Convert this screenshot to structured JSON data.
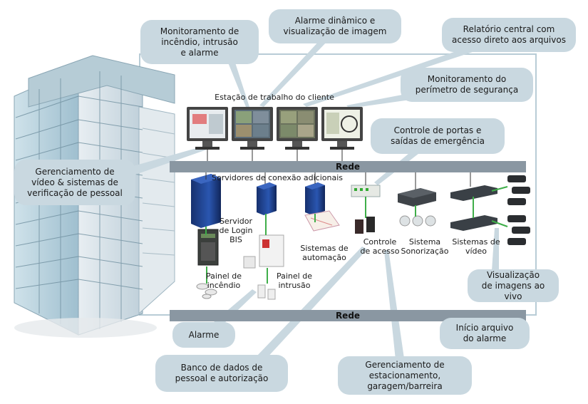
{
  "callouts": {
    "fire_intrusion": "Monitoramento de\nincêndio, intrusão\ne alarme",
    "dynamic_alarm": "Alarme dinâmico e\nvisualização de imagem",
    "central_report": "Relatório central com\nacesso direto aos arquivos",
    "perimeter": "Monitoramento do\nperímetro de segurança",
    "door_control": "Controle de portas e\nsaídas de emergência",
    "video_mgmt": "Gerenciamento de\nvídeo & sistemas de\nverificação de pessoal",
    "live_view": "Visualização\nde imagens ao vivo",
    "alarm_archive": "Início arquivo\ndo alarme",
    "alarm": "Alarme",
    "database": "Banco de dados de\npessoal e autorização",
    "parking": "Gerenciamento de\nestacionamento,\ngaragem/barreira"
  },
  "labels": {
    "workstation": "Estação de trabalho do cliente",
    "network_top": "Rede",
    "network_bottom": "Rede",
    "extra_servers": "Servidores de conexão adicionais",
    "login_server": "Servidor\nde Login\nBIS",
    "automation": "Sistemas de\nautomação",
    "access_control": "Controle\nde acesso",
    "sound_system": "Sistema\nSonorização",
    "video_systems": "Sistemas de\nvídeo",
    "fire_panel": "Painel de\nincêndio",
    "intrusion_panel": "Painel de\nintrusão"
  },
  "colors": {
    "callout_bg": "#c9d8e0",
    "network_bar": "#8a97a2",
    "link_green": "#3fae49",
    "frame": "#b8ccd6",
    "server_blue": "#1f3f8a"
  }
}
